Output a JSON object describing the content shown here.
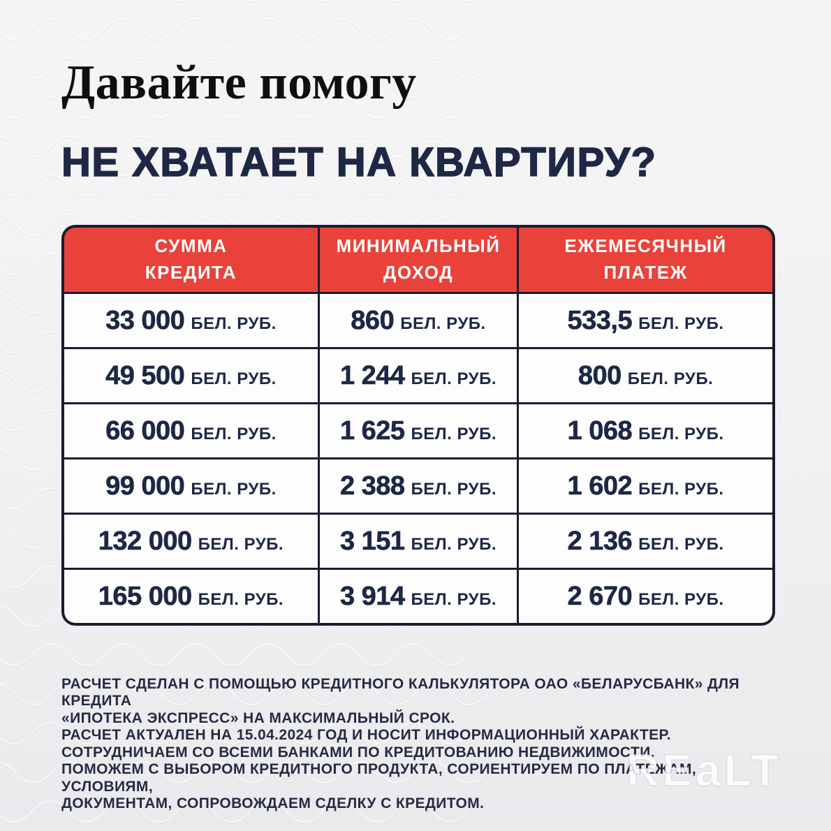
{
  "header": {
    "title": "Давайте помогу",
    "subtitle": "НЕ ХВАТАЕТ НА КВАРТИРУ?"
  },
  "table": {
    "columns": [
      "СУММА\nКРЕДИТА",
      "МИНИМАЛЬНЫЙ\nДОХОД",
      "ЕЖЕМЕСЯЧНЫЙ\nПЛАТЕЖ"
    ],
    "unit": "БЕЛ. РУБ.",
    "rows": [
      [
        "33 000",
        "860",
        "533,5"
      ],
      [
        "49 500",
        "1 244",
        "800"
      ],
      [
        "66 000",
        "1 625",
        "1 068"
      ],
      [
        "99 000",
        "2 388",
        "1 602"
      ],
      [
        "132 000",
        "3 151",
        "2 136"
      ],
      [
        "165 000",
        "3 914",
        "2 670"
      ]
    ]
  },
  "chart_data": {
    "type": "table",
    "title": "НЕ ХВАТАЕТ НА КВАРТИРУ?",
    "columns": [
      "СУММА КРЕДИТА",
      "МИНИМАЛЬНЫЙ ДОХОД",
      "ЕЖЕМЕСЯЧНЫЙ ПЛАТЕЖ"
    ],
    "unit": "БЕЛ. РУБ.",
    "rows": [
      [
        33000,
        860,
        533.5
      ],
      [
        49500,
        1244,
        800
      ],
      [
        66000,
        1625,
        1068
      ],
      [
        99000,
        2388,
        1602
      ],
      [
        132000,
        3151,
        2136
      ],
      [
        165000,
        3914,
        2670
      ]
    ]
  },
  "disclaimer": {
    "lines": [
      "РАСЧЕТ СДЕЛАН С ПОМОЩЬЮ КРЕДИТНОГО КАЛЬКУЛЯТОРА ОАО «БЕЛАРУСБАНК» ДЛЯ КРЕДИТА",
      "«ИПОТЕКА ЭКСПРЕСС» НА МАКСИМАЛЬНЫЙ СРОК.",
      "РАСЧЕТ АКТУАЛЕН НА 15.04.2024 ГОД И НОСИТ ИНФОРМАЦИОННЫЙ ХАРАКТЕР.",
      "СОТРУДНИЧАЕМ СО ВСЕМИ БАНКАМИ ПО КРЕДИТОВАНИЮ НЕДВИЖИМОСТИ,",
      "ПОМОЖЕМ С ВЫБОРОМ КРЕДИТНОГО ПРОДУКТА, СОРИЕНТИРУЕМ ПО ПЛАТЕЖАМ, УСЛОВИЯМ,",
      "ДОКУМЕНТАМ, СОПРОВОЖДАЕМ СДЕЛКУ С КРЕДИТОМ."
    ]
  },
  "watermark": "REaLT",
  "colors": {
    "accent_red": "#e9423b",
    "navy_text": "#1e2845",
    "table_border": "#1a1c30",
    "background": "#f1f1f3"
  }
}
